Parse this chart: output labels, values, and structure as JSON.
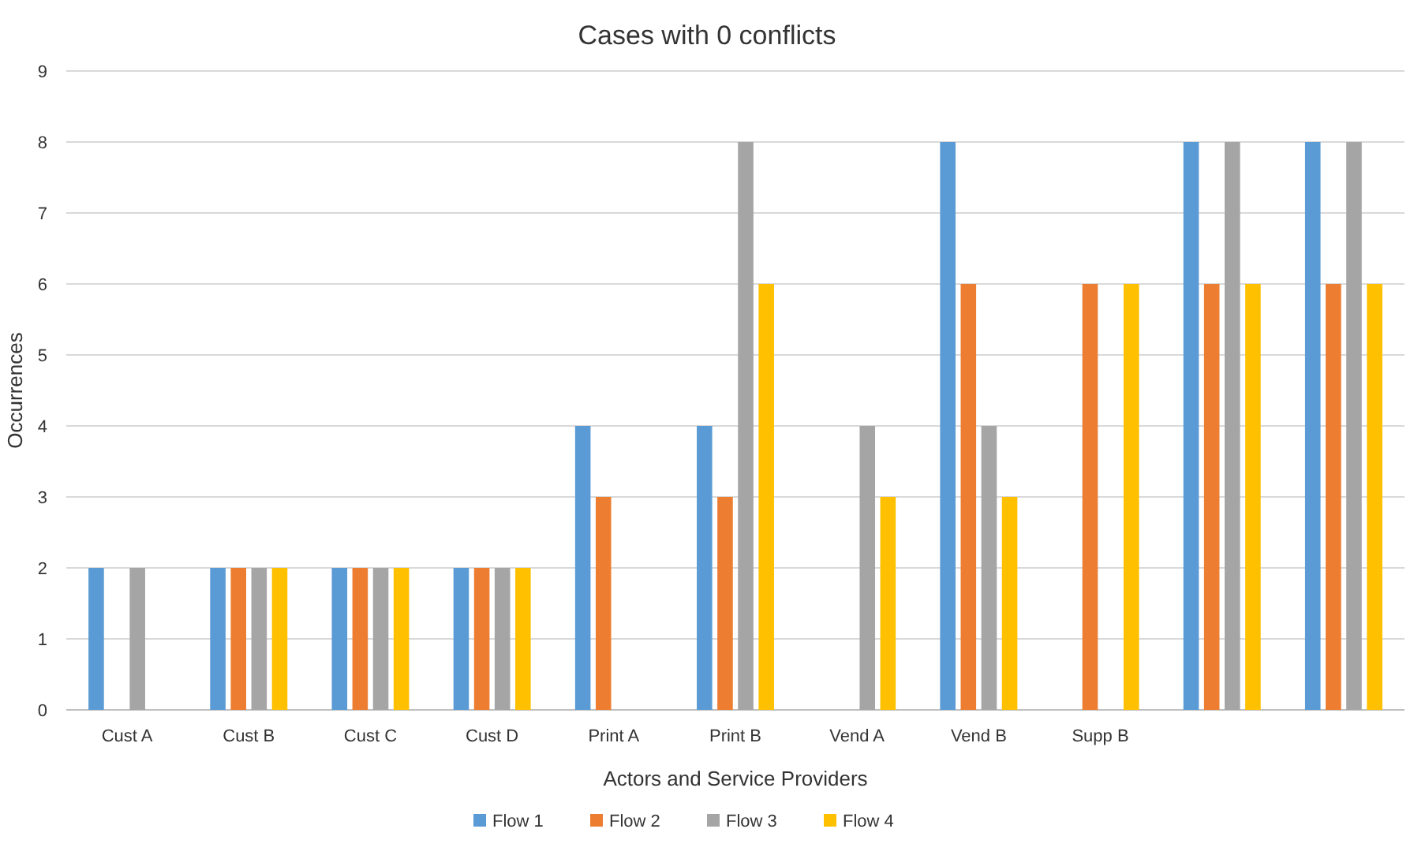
{
  "chart_data": {
    "type": "bar",
    "title": "Cases with 0 conflicts",
    "xlabel": "Actors and Service Providers",
    "ylabel": "Occurrences",
    "categories": [
      "Cust A",
      "Cust B",
      "Cust C",
      "Cust D",
      "Print A",
      "Print B",
      "Vend A",
      "Vend B",
      "Supp B",
      null,
      null
    ],
    "series": [
      {
        "name": "Flow 1",
        "color": "#5b9bd5",
        "values": [
          2,
          2,
          2,
          2,
          4,
          4,
          0,
          8,
          0,
          8,
          8
        ]
      },
      {
        "name": "Flow 2",
        "color": "#ed7d31",
        "values": [
          0,
          2,
          2,
          2,
          3,
          3,
          0,
          6,
          6,
          6,
          6
        ]
      },
      {
        "name": "Flow 3",
        "color": "#a5a5a5",
        "values": [
          2,
          2,
          2,
          2,
          0,
          8,
          4,
          4,
          0,
          8,
          8
        ]
      },
      {
        "name": "Flow 4",
        "color": "#ffc000",
        "values": [
          0,
          2,
          2,
          2,
          0,
          6,
          3,
          3,
          6,
          6,
          6
        ]
      }
    ],
    "ylim": [
      0,
      9
    ],
    "yticks": [
      0,
      1,
      2,
      3,
      4,
      5,
      6,
      7,
      8,
      9
    ],
    "grid": "y",
    "legend": "bottom"
  }
}
